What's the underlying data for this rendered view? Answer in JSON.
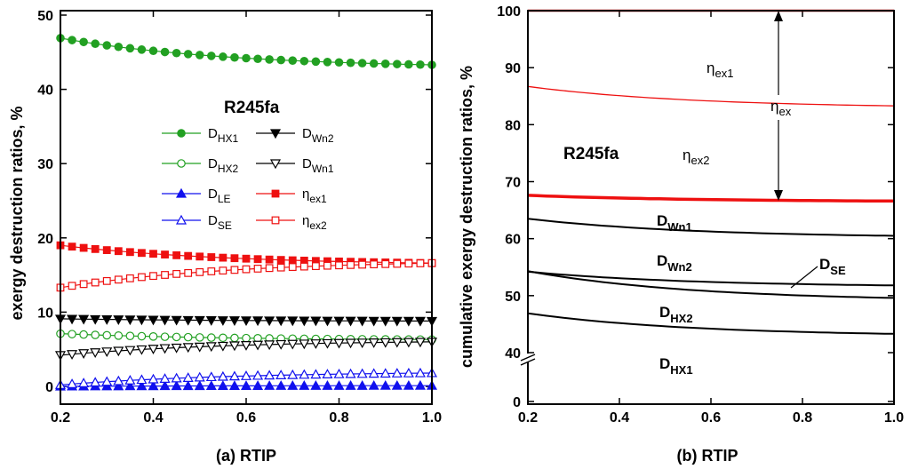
{
  "chart_data": [
    {
      "type": "line",
      "caption": "(a) RTIP",
      "title": "R245fa",
      "ylabel": "exergy destruction ratios, %",
      "xlim": [
        0.2,
        1.0
      ],
      "ylim": [
        0,
        50
      ],
      "xticks": [
        "0.2",
        "0.4",
        "0.6",
        "0.8",
        "1.0"
      ],
      "yticks": [
        "0",
        "10",
        "20",
        "30",
        "40",
        "50"
      ],
      "series": [
        {
          "name": "HX1",
          "sym": "D",
          "color": "#22a022",
          "marker": "circle-filled",
          "start": 46.9,
          "end": 43.3
        },
        {
          "name": "HX2",
          "sym": "D",
          "color": "#22a022",
          "marker": "circle-open",
          "start": 7.1,
          "end": 6.3
        },
        {
          "name": "LE",
          "sym": "D",
          "color": "#1010ee",
          "marker": "triangle-filled",
          "start": 0.0,
          "end": 0.1
        },
        {
          "name": "SE",
          "sym": "D",
          "color": "#1010ee",
          "marker": "triangle-open",
          "start": 0.2,
          "end": 1.8
        },
        {
          "name": "Wn2",
          "sym": "D",
          "color": "#000000",
          "marker": "tri-down-filled",
          "start": 9.1,
          "end": 8.8
        },
        {
          "name": "Wn1",
          "sym": "D",
          "color": "#000000",
          "marker": "tri-down-open",
          "start": 4.2,
          "end": 6.0
        },
        {
          "name": "ex1",
          "sym": "η",
          "color": "#ee1010",
          "marker": "square-filled",
          "start": 19.0,
          "end": 16.6
        },
        {
          "name": "ex2",
          "sym": "η",
          "color": "#ee1010",
          "marker": "square-open",
          "start": 13.3,
          "end": 16.6
        }
      ]
    },
    {
      "type": "line",
      "caption": "(b) RTIP",
      "title": "R245fa",
      "ylabel": "cumulative exergy destruction ratios, %",
      "xlim": [
        0.2,
        1.0
      ],
      "yticks": [
        "0",
        "40",
        "50",
        "60",
        "70",
        "80",
        "90",
        "100"
      ],
      "xticks": [
        "0.2",
        "0.4",
        "0.6",
        "0.8",
        "1.0"
      ],
      "series": [
        {
          "name": "top-100",
          "color": "#ee1010",
          "start": 100.0,
          "end": 100.0,
          "width": 2.5
        },
        {
          "name": "eta-ex2-boundary",
          "color": "#ee1010",
          "start": 86.7,
          "end": 83.3,
          "width": 1.3
        },
        {
          "name": "eta-ex1-bold",
          "color": "#ee1010",
          "start": 67.6,
          "end": 66.6,
          "width": 3.5
        },
        {
          "name": "Wn1-boundary",
          "color": "#000000",
          "start": 63.5,
          "end": 60.5,
          "width": 2
        },
        {
          "name": "Wn2-boundary",
          "color": "#000000",
          "start": 54.2,
          "end": 51.8,
          "width": 2
        },
        {
          "name": "SE-boundary",
          "color": "#000000",
          "start": 54.3,
          "end": 49.6,
          "width": 2
        },
        {
          "name": "HX1-boundary",
          "color": "#000000",
          "start": 46.9,
          "end": 43.3,
          "width": 2
        }
      ],
      "annotations": {
        "eta_ex1": {
          "sym": "η",
          "sub": "ex1"
        },
        "eta_ex": {
          "sym": "η",
          "sub": "ex"
        },
        "eta_ex2": {
          "sym": "η",
          "sub": "ex2"
        },
        "Wn1": {
          "sym": "D",
          "sub": "Wn1"
        },
        "Wn2": {
          "sym": "D",
          "sub": "Wn2"
        },
        "SE": {
          "sym": "D",
          "sub": "SE"
        },
        "HX2": {
          "sym": "D",
          "sub": "HX2"
        },
        "HX1": {
          "sym": "D",
          "sub": "HX1"
        }
      }
    }
  ]
}
